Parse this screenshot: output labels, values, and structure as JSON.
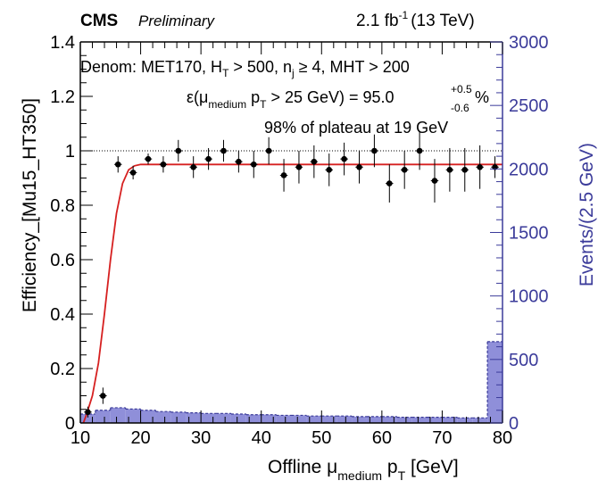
{
  "header": {
    "experiment": "CMS",
    "status": "Preliminary",
    "lumi": "2.1 fb",
    "lumi_exp": "-1",
    "energy": "(13 TeV)"
  },
  "annotations": {
    "denom": "Denom: MET170, H",
    "denom_ht_sub": "T",
    "denom_rest1": " > 500, n",
    "denom_nj_sub": "j",
    "denom_rest2": " ≥ 4, MHT > 200",
    "eff_lhs": "ε(μ",
    "eff_mu_sub": "medium",
    "eff_pt": " p",
    "eff_pt_sub": "T",
    "eff_rhs": " > 25 GeV) = 95.0",
    "eff_err_up": "+0.5",
    "eff_err_down": "-0.6",
    "eff_unit": "%",
    "plateau": "98% of plateau at 19 GeV"
  },
  "axes": {
    "xlabel_main": "Offline μ",
    "xlabel_sub": "medium",
    "xlabel_pt": " p",
    "xlabel_pt_sub": "T",
    "xlabel_unit": " [GeV]",
    "ylabel": "Efficiency_[Mu15_HT350]",
    "y2label": "Events/(2.5 GeV)"
  },
  "colors": {
    "fit": "#d62020",
    "hist_fill": "#8f8fd9",
    "hist_line": "#3b3b9a",
    "right_axis": "#3b3b9a",
    "points": "#000000"
  },
  "chart_data": {
    "type": "scatter",
    "xlim": [
      10,
      80
    ],
    "ylim": [
      0,
      1.4
    ],
    "y2lim": [
      0,
      3000
    ],
    "x_ticks": [
      10,
      20,
      30,
      40,
      50,
      60,
      70,
      80
    ],
    "y_ticks": [
      0,
      0.2,
      0.4,
      0.6,
      0.8,
      1,
      1.2,
      1.4
    ],
    "y2_ticks": [
      0,
      500,
      1000,
      1500,
      2000,
      2500,
      3000
    ],
    "reference_line_y": 1.0,
    "efficiency": {
      "x": [
        11.25,
        13.75,
        16.25,
        18.75,
        21.25,
        23.75,
        26.25,
        28.75,
        31.25,
        33.75,
        36.25,
        38.75,
        41.25,
        43.75,
        46.25,
        48.75,
        51.25,
        53.75,
        56.25,
        58.75,
        61.25,
        63.75,
        66.25,
        68.75,
        71.25,
        73.75,
        76.25,
        78.75
      ],
      "y": [
        0.04,
        0.1,
        0.95,
        0.92,
        0.97,
        0.95,
        1.0,
        0.94,
        0.97,
        1.0,
        0.96,
        0.95,
        1.0,
        0.91,
        0.94,
        0.96,
        0.93,
        0.97,
        0.94,
        1.0,
        0.88,
        0.93,
        1.0,
        0.89,
        0.93,
        0.93,
        0.94,
        0.94
      ],
      "y_err": [
        0.02,
        0.03,
        0.03,
        0.025,
        0.02,
        0.03,
        0.04,
        0.04,
        0.04,
        0.04,
        0.04,
        0.05,
        0.05,
        0.06,
        0.06,
        0.06,
        0.06,
        0.06,
        0.06,
        0.06,
        0.07,
        0.07,
        0.07,
        0.08,
        0.08,
        0.08,
        0.08,
        0.04
      ]
    },
    "events_histogram": {
      "bin_edges": [
        10,
        12.5,
        15,
        17.5,
        20,
        22.5,
        25,
        27.5,
        30,
        32.5,
        35,
        37.5,
        40,
        42.5,
        45,
        47.5,
        50,
        52.5,
        55,
        57.5,
        60,
        62.5,
        65,
        67.5,
        70,
        72.5,
        75,
        77.5,
        80
      ],
      "counts": [
        70,
        100,
        120,
        110,
        100,
        90,
        85,
        80,
        75,
        75,
        70,
        65,
        65,
        60,
        60,
        55,
        55,
        55,
        50,
        50,
        50,
        45,
        45,
        45,
        45,
        40,
        40,
        640
      ]
    },
    "fit": {
      "function": "error-function turn-on",
      "plateau": 0.95,
      "x": [
        10.5,
        11,
        12,
        13,
        14,
        15,
        16,
        17,
        18,
        19,
        20,
        22,
        25,
        30,
        40,
        50,
        60,
        70,
        80
      ],
      "y": [
        0.0,
        0.03,
        0.1,
        0.22,
        0.4,
        0.6,
        0.77,
        0.88,
        0.93,
        0.945,
        0.95,
        0.95,
        0.95,
        0.95,
        0.95,
        0.95,
        0.95,
        0.95,
        0.95
      ]
    }
  }
}
